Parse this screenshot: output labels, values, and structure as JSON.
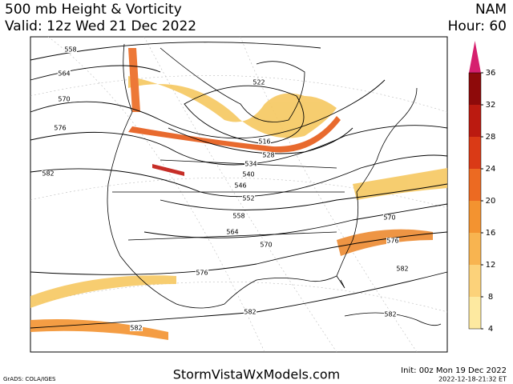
{
  "header": {
    "title": "500 mb Height & Vorticity",
    "valid": "Valid: 12z Wed 21 Dec 2022",
    "model": "NAM",
    "hour": "Hour: 60"
  },
  "map": {
    "contour_labels": [
      558,
      564,
      570,
      576,
      582,
      522,
      516,
      528,
      534,
      540,
      546,
      552,
      558,
      564,
      570,
      570,
      576,
      582,
      576,
      582,
      582,
      582
    ]
  },
  "colorbar": {
    "ticks": [
      4,
      8,
      12,
      16,
      20,
      24,
      28,
      32,
      36
    ],
    "colors": [
      "#fde9a0",
      "#fcd27a",
      "#f8b450",
      "#f39330",
      "#ec6a22",
      "#da3a16",
      "#bb1a10",
      "#8e0a0a"
    ],
    "over_color": "#d6206e"
  },
  "footer": {
    "site": "StormVistaWxModels.com",
    "init": "Init: 00z Mon 19 Dec 2022",
    "stamp": "2022-12-18-21:32 ET",
    "credit": "GrADS: COLA/IGES"
  }
}
